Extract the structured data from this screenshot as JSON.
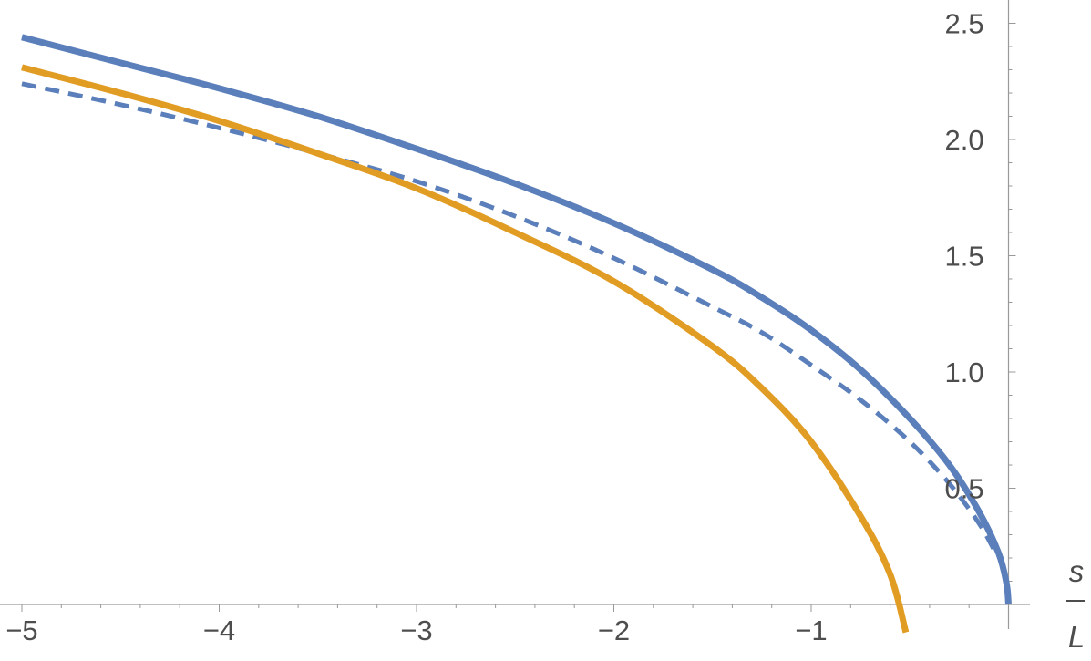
{
  "chart_data": {
    "type": "line",
    "xlabel_numerator": "s",
    "xlabel_denominator": "L",
    "xlim": [
      -5.05,
      0.1
    ],
    "ylim": [
      0,
      2.58
    ],
    "x_ticks": [
      {
        "value": -5,
        "label": "−5"
      },
      {
        "value": -4,
        "label": "−4"
      },
      {
        "value": -3,
        "label": "−3"
      },
      {
        "value": -2,
        "label": "−2"
      },
      {
        "value": -1,
        "label": "−1"
      }
    ],
    "y_ticks": [
      {
        "value": 0.5,
        "label": "0.5"
      },
      {
        "value": 1.0,
        "label": "1.0"
      },
      {
        "value": 1.5,
        "label": "1.5"
      },
      {
        "value": 2.0,
        "label": "2.0"
      },
      {
        "value": 2.5,
        "label": "2.5"
      }
    ],
    "grid": false,
    "series": [
      {
        "style": "solid",
        "color": "#5b7fba",
        "points": [
          [
            -5,
            2.44
          ],
          [
            -4.5,
            2.33
          ],
          [
            -4,
            2.22
          ],
          [
            -3.5,
            2.1
          ],
          [
            -3,
            1.96
          ],
          [
            -2.5,
            1.81
          ],
          [
            -2,
            1.64
          ],
          [
            -1.5,
            1.44
          ],
          [
            -1.25,
            1.32
          ],
          [
            -1,
            1.18
          ],
          [
            -0.75,
            1.01
          ],
          [
            -0.5,
            0.8
          ],
          [
            -0.3,
            0.6
          ],
          [
            -0.15,
            0.4
          ],
          [
            -0.05,
            0.22
          ],
          [
            -0.01,
            0.09
          ],
          [
            0,
            0
          ]
        ]
      },
      {
        "style": "dashed",
        "color": "#5b7fba",
        "points": [
          [
            -5,
            2.24
          ],
          [
            -4.5,
            2.15
          ],
          [
            -4,
            2.05
          ],
          [
            -3.5,
            1.94
          ],
          [
            -3,
            1.82
          ],
          [
            -2.5,
            1.67
          ],
          [
            -2,
            1.49
          ],
          [
            -1.5,
            1.28
          ],
          [
            -1.25,
            1.17
          ],
          [
            -1,
            1.03
          ],
          [
            -0.75,
            0.88
          ],
          [
            -0.5,
            0.7
          ],
          [
            -0.3,
            0.52
          ],
          [
            -0.15,
            0.35
          ],
          [
            -0.07,
            0.23
          ]
        ]
      },
      {
        "style": "solid",
        "color": "#e19c24",
        "points": [
          [
            -5,
            2.31
          ],
          [
            -4.5,
            2.2
          ],
          [
            -4,
            2.08
          ],
          [
            -3.5,
            1.94
          ],
          [
            -3,
            1.79
          ],
          [
            -2.5,
            1.6
          ],
          [
            -2,
            1.39
          ],
          [
            -1.5,
            1.11
          ],
          [
            -1.25,
            0.93
          ],
          [
            -1,
            0.7
          ],
          [
            -0.75,
            0.38
          ],
          [
            -0.6,
            0.13
          ],
          [
            -0.52,
            -0.12
          ]
        ]
      }
    ]
  }
}
